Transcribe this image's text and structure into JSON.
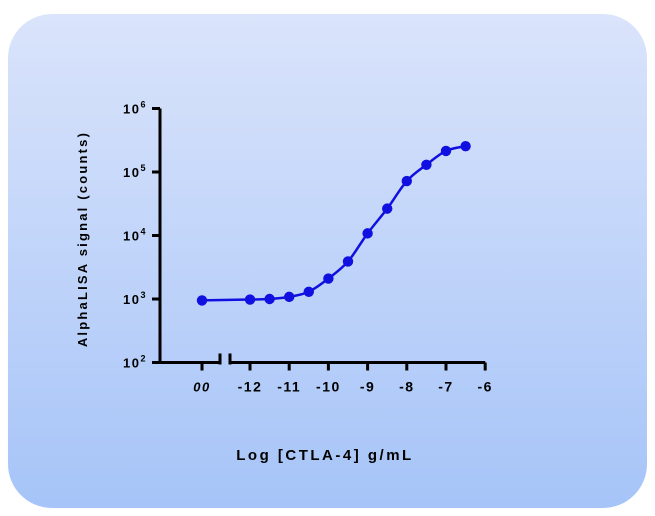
{
  "chart_data": {
    "type": "scatter",
    "title": "",
    "xlabel": "Log [CTLA-4] g/mL",
    "ylabel": "AlphaLISA signal (counts)",
    "x_scale": "log10 concentration (g/mL)",
    "y_scale": "log",
    "xlim": [
      -12.75,
      -6
    ],
    "ylim": [
      100,
      1000000
    ],
    "x_break_label": "00",
    "x_break_value": 0,
    "x_ticks": [
      {
        "value": -12,
        "label": "-12"
      },
      {
        "value": -11,
        "label": "-11"
      },
      {
        "value": -10,
        "label": "-10"
      },
      {
        "value": -9,
        "label": "-9"
      },
      {
        "value": -8,
        "label": "-8"
      },
      {
        "value": -7,
        "label": "-7"
      },
      {
        "value": -6,
        "label": "-6"
      }
    ],
    "y_ticks": [
      {
        "value": 100,
        "base": "10",
        "exp": "2"
      },
      {
        "value": 1000,
        "base": "10",
        "exp": "3"
      },
      {
        "value": 10000,
        "base": "10",
        "exp": "4"
      },
      {
        "value": 100000,
        "base": "10",
        "exp": "5"
      },
      {
        "value": 1000000,
        "base": "10",
        "exp": "6"
      }
    ],
    "zero_point": {
      "x": 0,
      "y": 950
    },
    "points": [
      {
        "x": -12.0,
        "y": 980
      },
      {
        "x": -11.5,
        "y": 1000
      },
      {
        "x": -11.0,
        "y": 1080
      },
      {
        "x": -10.5,
        "y": 1300
      },
      {
        "x": -10.0,
        "y": 2100
      },
      {
        "x": -9.5,
        "y": 3900
      },
      {
        "x": -9.0,
        "y": 10800
      },
      {
        "x": -8.5,
        "y": 26500
      },
      {
        "x": -8.0,
        "y": 72000
      },
      {
        "x": -7.5,
        "y": 130000
      },
      {
        "x": -7.0,
        "y": 215000
      },
      {
        "x": -6.5,
        "y": 255000
      }
    ],
    "curve": "sigmoidal fit",
    "grid": false,
    "legend": "none",
    "colors": {
      "series": "#1010e0",
      "axis": "#000000",
      "card_gradient_top": "#dae4fb",
      "card_gradient_bottom": "#a6c4f8"
    }
  }
}
